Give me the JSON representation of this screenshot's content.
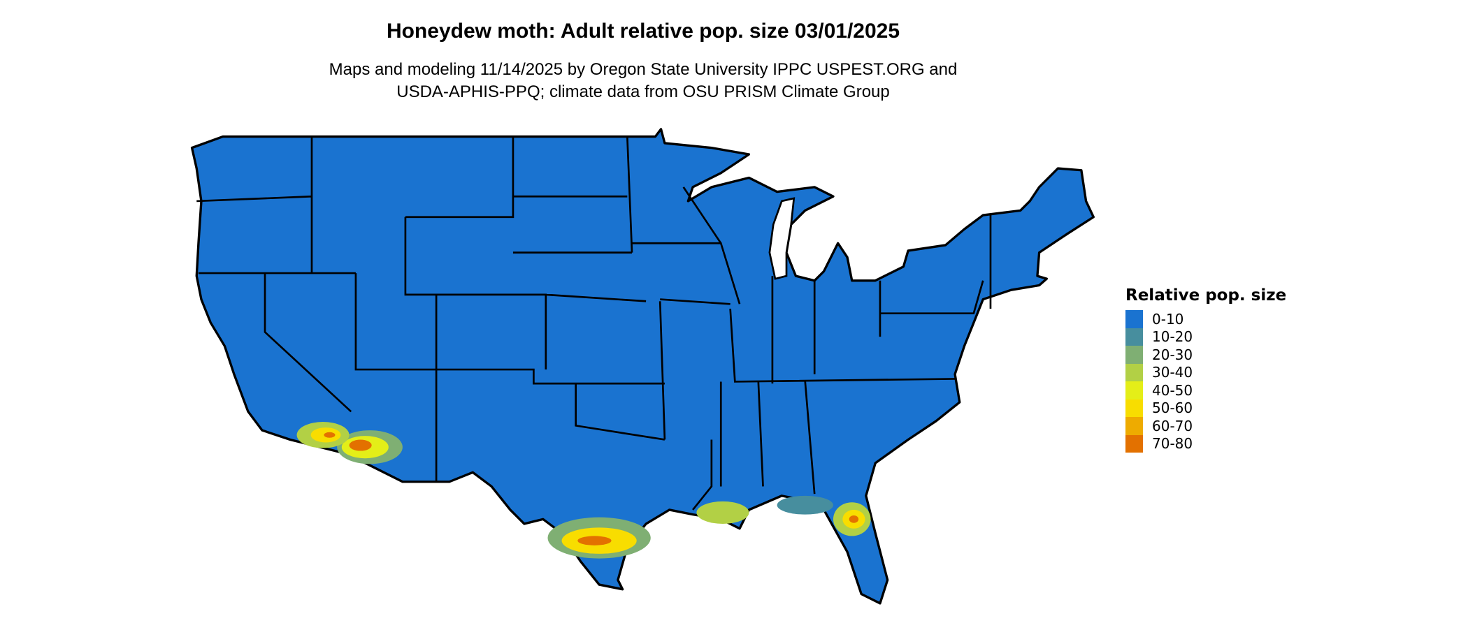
{
  "title": "Honeydew moth: Adult relative pop. size 03/01/2025",
  "subtitle_line1": "Maps and modeling 11/14/2025 by Oregon State University IPPC USPEST.ORG and",
  "subtitle_line2": "USDA-APHIS-PPQ; climate data from OSU PRISM Climate Group",
  "map": {
    "region": "Contiguous United States",
    "base_color": "#1A73D0",
    "border_color": "#000000",
    "hotspot_regions": [
      "Southern California / Arizona desert",
      "South Texas",
      "Louisiana coast",
      "Central Florida"
    ]
  },
  "legend": {
    "title": "Relative pop. size",
    "items": [
      {
        "label": "0-10",
        "color": "#1A73D0"
      },
      {
        "label": "10-20",
        "color": "#478E9E"
      },
      {
        "label": "20-30",
        "color": "#7FAF73"
      },
      {
        "label": "30-40",
        "color": "#B2D045"
      },
      {
        "label": "40-50",
        "color": "#E4EE18"
      },
      {
        "label": "50-60",
        "color": "#F8DD00"
      },
      {
        "label": "60-70",
        "color": "#EEAB00"
      },
      {
        "label": "70-80",
        "color": "#E37100"
      }
    ]
  }
}
